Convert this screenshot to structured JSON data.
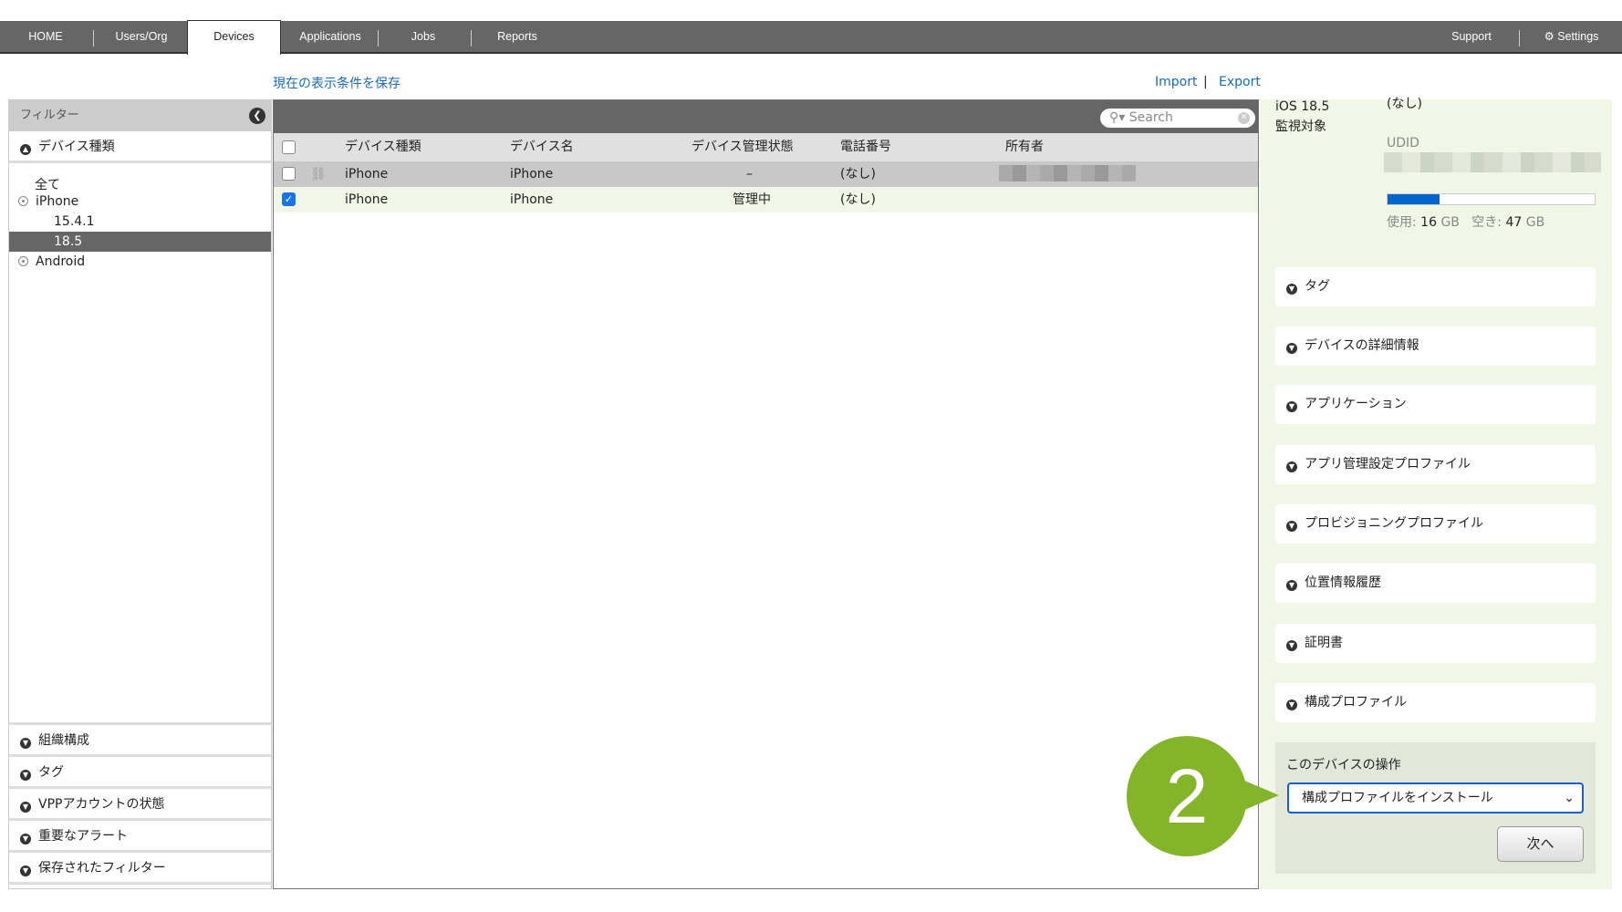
{
  "nav": {
    "tabs": [
      "HOME",
      "Users/Org",
      "Devices",
      "Applications",
      "Jobs",
      "Reports"
    ],
    "active": "Devices",
    "support": "Support",
    "settings": "Settings"
  },
  "toolbar": {
    "save_view": "現在の表示条件を保存",
    "import": "Import",
    "separator": "|",
    "export": "Export"
  },
  "filter": {
    "title": "フィルター",
    "device_type": "デバイス種類",
    "tree": [
      "全て",
      "iPhone",
      "15.4.1",
      "18.5",
      "Android"
    ],
    "selected": "18.5",
    "sections": [
      "組織構成",
      "タグ",
      "VPPアカウントの状態",
      "重要なアラート",
      "保存されたフィルター"
    ]
  },
  "table": {
    "search_placeholder": "Search",
    "columns": [
      "デバイス種類",
      "デバイス名",
      "デバイス管理状態",
      "電話番号",
      "所有者"
    ],
    "rows": [
      {
        "type": "iPhone",
        "name": "iPhone",
        "status": "–",
        "phone": "(なし)",
        "owner": "",
        "checked": false,
        "removed": true
      },
      {
        "type": "iPhone",
        "name": "iPhone",
        "status": "管理中",
        "phone": "(なし)",
        "owner": "",
        "checked": true,
        "removed": false
      }
    ]
  },
  "detail": {
    "os": "iOS 18.5",
    "supervised": "監視対象",
    "phone_value": "(なし)",
    "udid_label": "UDID",
    "storage": {
      "used_label": "使用:",
      "used": "16",
      "free_label": "空き:",
      "free": "47",
      "unit": "GB",
      "used_fraction": 0.25,
      "fill_color": "#0066cc"
    },
    "sections": [
      "タグ",
      "デバイスの詳細情報",
      "アプリケーション",
      "アプリ管理設定プロファイル",
      "プロビジョニングプロファイル",
      "位置情報履歴",
      "証明書",
      "構成プロファイル"
    ],
    "ops": {
      "label": "このデバイスの操作",
      "selected": "構成プロファイルをインストール",
      "next": "次へ"
    }
  },
  "callout": {
    "number": "2",
    "color": "#84b42a"
  }
}
